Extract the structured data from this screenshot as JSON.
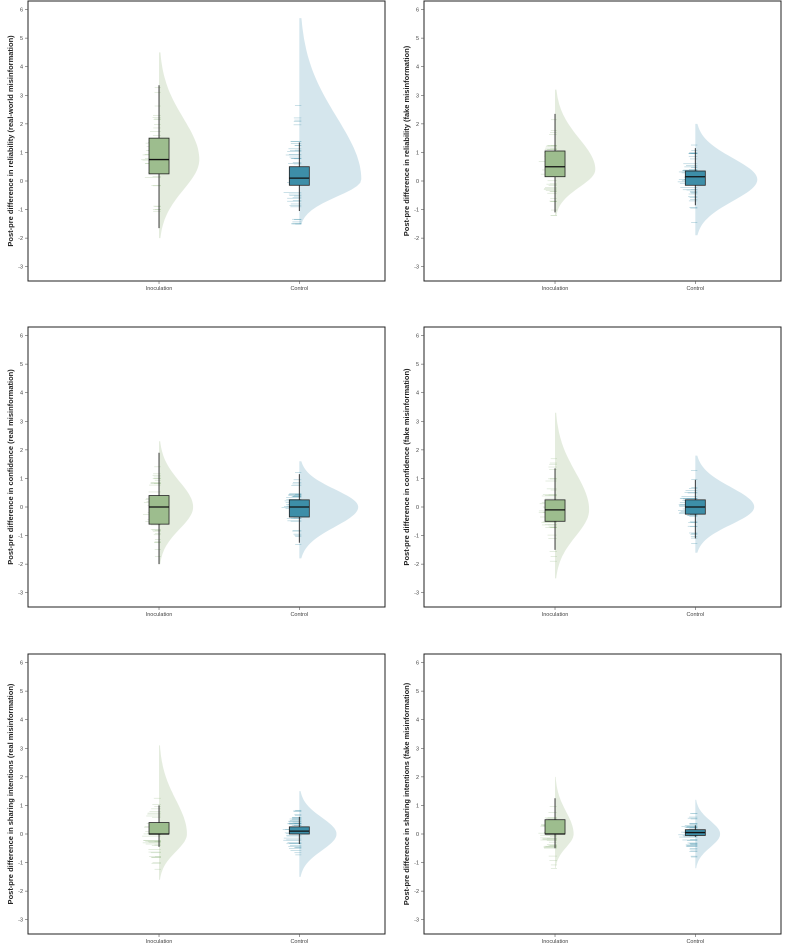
{
  "colors": {
    "inoculation_box": "#9dbd8e",
    "inoculation_density": "#e3ebdc",
    "control_box": "#3d8ea8",
    "control_density": "#d3e5ec",
    "frame": "#222222"
  },
  "chart_data": [
    {
      "type": "raincloud",
      "xlabel": "",
      "ylabel": "Post-pre difference in reliability (real-world misinformation)",
      "categories": [
        "Inoculation",
        "Control"
      ],
      "ylim": [
        -3.5,
        6.3
      ],
      "yticks": [
        "-3",
        "-2",
        "-1",
        "0",
        "1",
        "2",
        "3",
        "4",
        "5",
        "6"
      ],
      "boxes": [
        {
          "category": "Inoculation",
          "whisker_low": -1.65,
          "q1": 0.25,
          "median": 0.75,
          "q3": 1.5,
          "whisker_high": 3.35
        },
        {
          "category": "Control",
          "whisker_low": -1.05,
          "q1": -0.15,
          "median": 0.1,
          "q3": 0.5,
          "whisker_high": 1.35
        }
      ],
      "densities": [
        {
          "category": "Inoculation",
          "range": [
            -2.0,
            4.5
          ],
          "mode": 0.75,
          "peak": 0.65
        },
        {
          "category": "Control",
          "range": [
            -1.5,
            5.7
          ],
          "mode": 0.05,
          "peak": 1.0
        }
      ]
    },
    {
      "type": "raincloud",
      "xlabel": "",
      "ylabel": "Post-pre difference in reliability (fake misinformation)",
      "categories": [
        "Inoculation",
        "Control"
      ],
      "ylim": [
        -3.5,
        6.3
      ],
      "yticks": [
        "-3",
        "-2",
        "-1",
        "0",
        "1",
        "2",
        "3",
        "4",
        "5",
        "6"
      ],
      "boxes": [
        {
          "category": "Inoculation",
          "whisker_low": -1.1,
          "q1": 0.15,
          "median": 0.5,
          "q3": 1.05,
          "whisker_high": 2.35
        },
        {
          "category": "Control",
          "whisker_low": -0.85,
          "q1": -0.15,
          "median": 0.15,
          "q3": 0.35,
          "whisker_high": 1.15
        }
      ],
      "densities": [
        {
          "category": "Inoculation",
          "range": [
            -1.2,
            3.2
          ],
          "mode": 0.4,
          "peak": 0.65
        },
        {
          "category": "Control",
          "range": [
            -1.9,
            2.0
          ],
          "mode": 0.05,
          "peak": 1.0
        }
      ]
    },
    {
      "type": "raincloud",
      "xlabel": "",
      "ylabel": "Post-pre difference in confidence (real misinformation)",
      "categories": [
        "Inoculation",
        "Control"
      ],
      "ylim": [
        -3.5,
        6.3
      ],
      "yticks": [
        "-3",
        "-2",
        "-1",
        "0",
        "1",
        "2",
        "3",
        "4",
        "5",
        "6"
      ],
      "boxes": [
        {
          "category": "Inoculation",
          "whisker_low": -2.0,
          "q1": -0.6,
          "median": 0.0,
          "q3": 0.4,
          "whisker_high": 1.9
        },
        {
          "category": "Control",
          "whisker_low": -1.25,
          "q1": -0.35,
          "median": 0.0,
          "q3": 0.25,
          "whisker_high": 1.15
        }
      ],
      "densities": [
        {
          "category": "Inoculation",
          "range": [
            -2.0,
            2.3
          ],
          "mode": 0.0,
          "peak": 0.55
        },
        {
          "category": "Control",
          "range": [
            -1.8,
            1.6
          ],
          "mode": 0.0,
          "peak": 0.95
        }
      ]
    },
    {
      "type": "raincloud",
      "xlabel": "",
      "ylabel": "Post-pre difference in confidence (fake misinformation)",
      "categories": [
        "Inoculation",
        "Control"
      ],
      "ylim": [
        -3.5,
        6.3
      ],
      "yticks": [
        "-3",
        "-2",
        "-1",
        "0",
        "1",
        "2",
        "3",
        "4",
        "5",
        "6"
      ],
      "boxes": [
        {
          "category": "Inoculation",
          "whisker_low": -1.5,
          "q1": -0.5,
          "median": -0.1,
          "q3": 0.25,
          "whisker_high": 1.35
        },
        {
          "category": "Control",
          "whisker_low": -1.1,
          "q1": -0.25,
          "median": 0.0,
          "q3": 0.25,
          "whisker_high": 0.95
        }
      ],
      "densities": [
        {
          "category": "Inoculation",
          "range": [
            -2.5,
            3.3
          ],
          "mode": -0.1,
          "peak": 0.55
        },
        {
          "category": "Control",
          "range": [
            -1.6,
            1.8
          ],
          "mode": 0.0,
          "peak": 0.95
        }
      ]
    },
    {
      "type": "raincloud",
      "xlabel": "",
      "ylabel": "Post-pre difference in sharing intentions (real misinformation)",
      "categories": [
        "Inoculation",
        "Control"
      ],
      "ylim": [
        -3.5,
        6.3
      ],
      "yticks": [
        "-3",
        "-2",
        "-1",
        "0",
        "1",
        "2",
        "3",
        "4",
        "5",
        "6"
      ],
      "boxes": [
        {
          "category": "Inoculation",
          "whisker_low": -0.45,
          "q1": 0.0,
          "median": 0.0,
          "q3": 0.4,
          "whisker_high": 1.0
        },
        {
          "category": "Control",
          "whisker_low": -0.35,
          "q1": 0.0,
          "median": 0.1,
          "q3": 0.25,
          "whisker_high": 0.6
        }
      ],
      "densities": [
        {
          "category": "Inoculation",
          "range": [
            -1.6,
            3.1
          ],
          "mode": 0.0,
          "peak": 0.45
        },
        {
          "category": "Control",
          "range": [
            -1.5,
            1.5
          ],
          "mode": 0.0,
          "peak": 0.6
        }
      ]
    },
    {
      "type": "raincloud",
      "xlabel": "",
      "ylabel": "Post-pre difference in sharing intentions (fake misinformation)",
      "categories": [
        "Inoculation",
        "Control"
      ],
      "ylim": [
        -3.5,
        6.3
      ],
      "yticks": [
        "-3",
        "-2",
        "-1",
        "0",
        "1",
        "2",
        "3",
        "4",
        "5",
        "6"
      ],
      "boxes": [
        {
          "category": "Inoculation",
          "whisker_low": -0.5,
          "q1": 0.0,
          "median": 0.0,
          "q3": 0.5,
          "whisker_high": 1.25
        },
        {
          "category": "Control",
          "whisker_low": -0.1,
          "q1": -0.05,
          "median": 0.05,
          "q3": 0.15,
          "whisker_high": 0.3
        }
      ],
      "densities": [
        {
          "category": "Inoculation",
          "range": [
            -1.2,
            2.0
          ],
          "mode": 0.0,
          "peak": 0.3
        },
        {
          "category": "Control",
          "range": [
            -1.2,
            1.2
          ],
          "mode": 0.0,
          "peak": 0.4
        }
      ]
    }
  ]
}
